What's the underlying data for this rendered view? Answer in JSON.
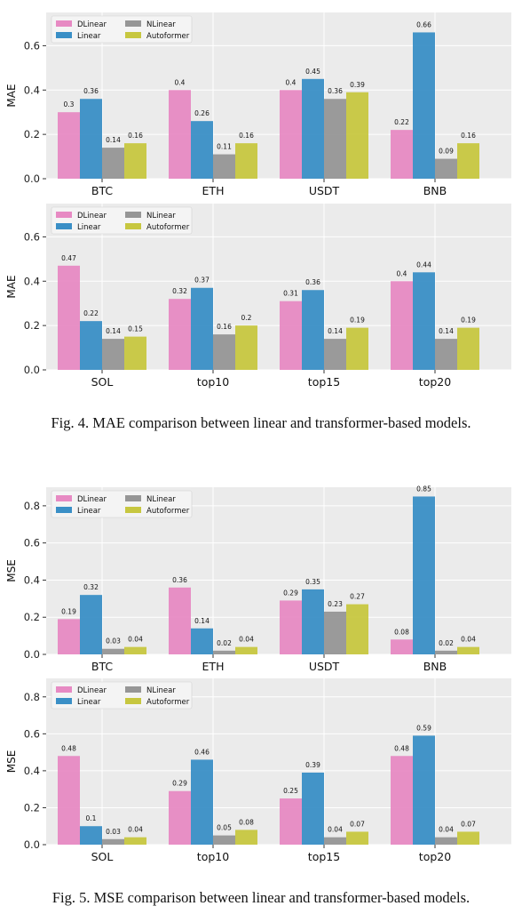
{
  "colors": {
    "DLinear": "#e78ac3",
    "Linear": "#3a8fc6",
    "NLinear": "#969696",
    "Autoformer": "#c7c740",
    "plot_bg": "#ebebeb",
    "grid": "#ffffff"
  },
  "legend": [
    "DLinear",
    "Linear",
    "NLinear",
    "Autoformer"
  ],
  "fig4_caption": "Fig. 4.  MAE comparison between linear and transformer-based models.",
  "fig5_caption": "Fig. 5.  MSE comparison between linear and transformer-based models.",
  "chart_data": [
    {
      "type": "bar",
      "figure": "fig4",
      "ylabel": "MAE",
      "ylim": [
        0,
        0.75
      ],
      "yticks": [
        "0.0",
        "0.2",
        "0.4",
        "0.6"
      ],
      "legend_position": "top-left",
      "grid": true,
      "categories": [
        "BTC",
        "ETH",
        "USDT",
        "BNB"
      ],
      "series": [
        {
          "name": "DLinear",
          "values": [
            0.3,
            0.4,
            0.4,
            0.22
          ]
        },
        {
          "name": "Linear",
          "values": [
            0.36,
            0.26,
            0.45,
            0.66
          ]
        },
        {
          "name": "NLinear",
          "values": [
            0.14,
            0.11,
            0.36,
            0.09
          ]
        },
        {
          "name": "Autoformer",
          "values": [
            0.16,
            0.16,
            0.39,
            0.16
          ]
        }
      ]
    },
    {
      "type": "bar",
      "figure": "fig4",
      "ylabel": "MAE",
      "ylim": [
        0,
        0.75
      ],
      "yticks": [
        "0.0",
        "0.2",
        "0.4",
        "0.6"
      ],
      "legend_position": "top-left",
      "grid": true,
      "categories": [
        "SOL",
        "top10",
        "top15",
        "top20"
      ],
      "series": [
        {
          "name": "DLinear",
          "values": [
            0.47,
            0.32,
            0.31,
            0.4
          ]
        },
        {
          "name": "Linear",
          "values": [
            0.22,
            0.37,
            0.36,
            0.44
          ]
        },
        {
          "name": "NLinear",
          "values": [
            0.14,
            0.16,
            0.14,
            0.14
          ]
        },
        {
          "name": "Autoformer",
          "values": [
            0.15,
            0.2,
            0.19,
            0.19
          ]
        }
      ]
    },
    {
      "type": "bar",
      "figure": "fig5",
      "ylabel": "MSE",
      "ylim": [
        0,
        0.9
      ],
      "yticks": [
        "0.0",
        "0.2",
        "0.4",
        "0.6",
        "0.8"
      ],
      "legend_position": "top-left",
      "grid": true,
      "categories": [
        "BTC",
        "ETH",
        "USDT",
        "BNB"
      ],
      "series": [
        {
          "name": "DLinear",
          "values": [
            0.19,
            0.36,
            0.29,
            0.08
          ]
        },
        {
          "name": "Linear",
          "values": [
            0.32,
            0.14,
            0.35,
            0.85
          ]
        },
        {
          "name": "NLinear",
          "values": [
            0.03,
            0.02,
            0.23,
            0.02
          ]
        },
        {
          "name": "Autoformer",
          "values": [
            0.04,
            0.04,
            0.27,
            0.04
          ]
        }
      ]
    },
    {
      "type": "bar",
      "figure": "fig5",
      "ylabel": "MSE",
      "ylim": [
        0,
        0.9
      ],
      "yticks": [
        "0.0",
        "0.2",
        "0.4",
        "0.6",
        "0.8"
      ],
      "legend_position": "top-left",
      "grid": true,
      "categories": [
        "SOL",
        "top10",
        "top15",
        "top20"
      ],
      "series": [
        {
          "name": "DLinear",
          "values": [
            0.48,
            0.29,
            0.25,
            0.48
          ]
        },
        {
          "name": "Linear",
          "values": [
            0.1,
            0.46,
            0.39,
            0.59
          ]
        },
        {
          "name": "NLinear",
          "values": [
            0.03,
            0.05,
            0.04,
            0.04
          ]
        },
        {
          "name": "Autoformer",
          "values": [
            0.04,
            0.08,
            0.07,
            0.07
          ]
        }
      ]
    }
  ]
}
